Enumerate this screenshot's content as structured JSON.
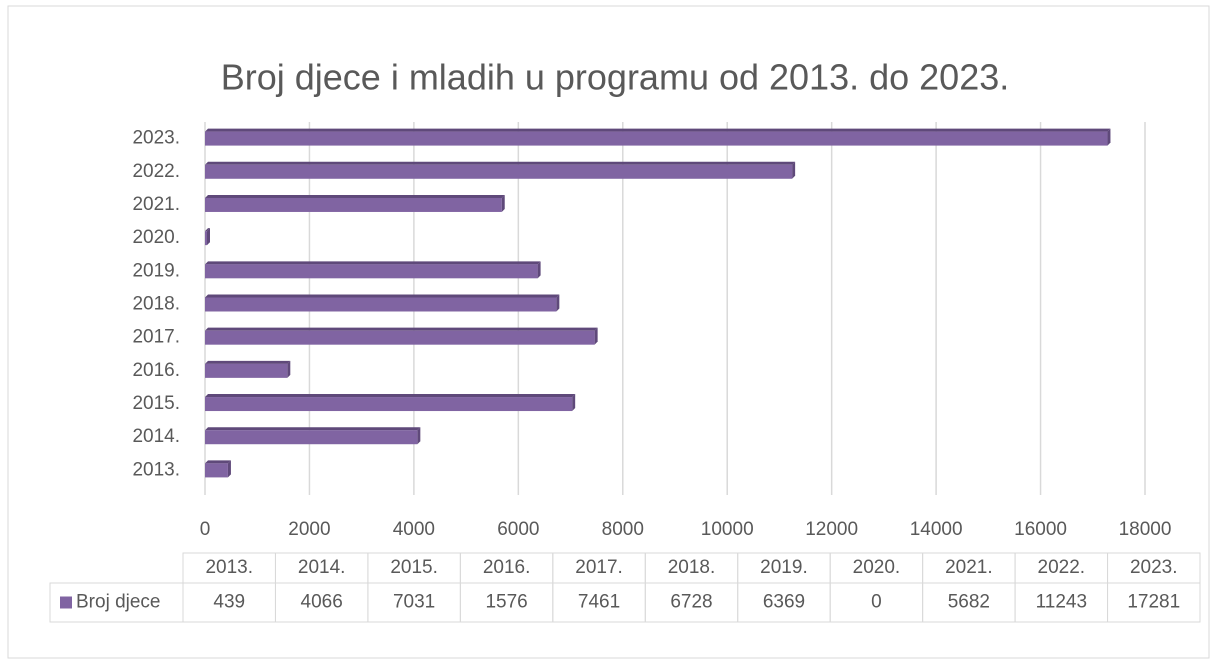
{
  "chart_data": {
    "type": "bar",
    "orientation": "horizontal",
    "title": "Broj djece i mladih u programu od 2013. do 2023.",
    "categories": [
      "2013.",
      "2014.",
      "2015.",
      "2016.",
      "2017.",
      "2018.",
      "2019.",
      "2020.",
      "2021.",
      "2022.",
      "2023."
    ],
    "series": [
      {
        "name": "Broj djece",
        "color": "#8064a2",
        "values": [
          439,
          4066,
          7031,
          1576,
          7461,
          6728,
          6369,
          0,
          5682,
          11243,
          17281
        ]
      }
    ],
    "xlim": [
      0,
      18000
    ],
    "xticks": [
      0,
      2000,
      4000,
      6000,
      8000,
      10000,
      12000,
      14000,
      16000,
      18000
    ],
    "grid": true,
    "data_table": true
  }
}
